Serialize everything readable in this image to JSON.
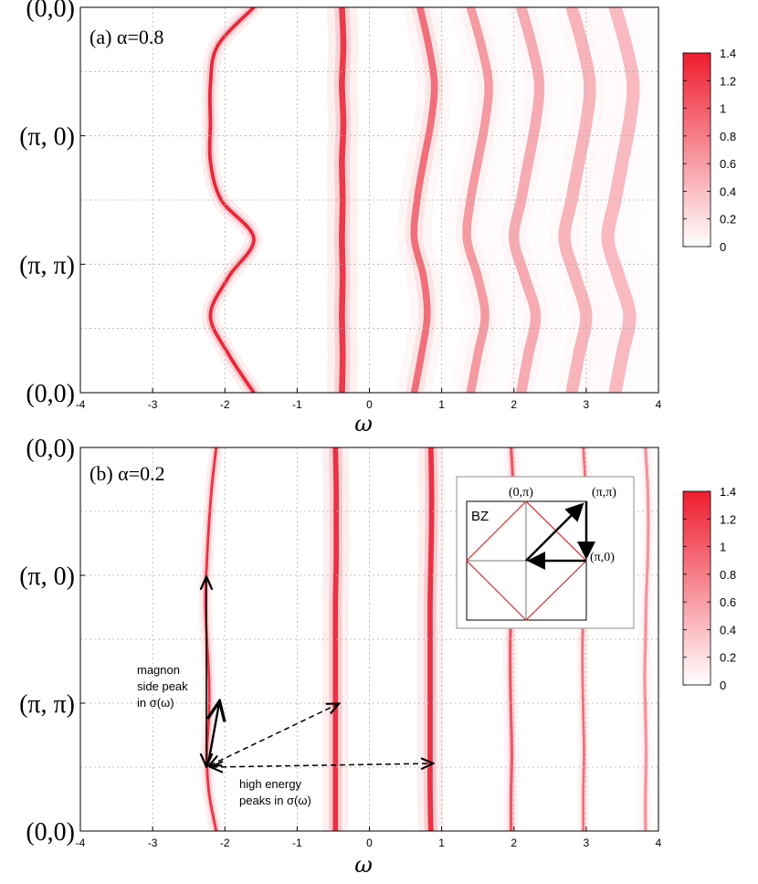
{
  "chart_data": [
    {
      "type": "heatmap",
      "panel_label": "(a) α=0.8",
      "alpha": 0.8,
      "xlabel": "ω",
      "xlim": [
        -4,
        4
      ],
      "x_ticks": [
        "-4",
        "-3",
        "-2",
        "-1",
        "0",
        "1",
        "2",
        "3",
        "4"
      ],
      "y_ticks": [
        "(0,0)",
        "(π, 0)",
        "(π, π)",
        "(0,0)"
      ],
      "colorbar": {
        "range": [
          0,
          1.4
        ],
        "ticks": [
          "1.4",
          "1.2",
          "1",
          "0.8",
          "0.6",
          "0.4",
          "0.2",
          "0"
        ]
      },
      "bands": [
        {
          "omega": [
            -1.6,
            -2.1,
            -2.2,
            -2.2,
            -2.2,
            -2.05,
            -1.6,
            -1.95,
            -2.2,
            -1.95,
            -1.6
          ],
          "width": 0.04,
          "peak": 1.4
        },
        {
          "omega": [
            -0.38,
            -0.36,
            -0.38,
            -0.36,
            -0.38,
            -0.37,
            -0.38,
            -0.37,
            -0.38,
            -0.37,
            -0.38
          ],
          "width": 0.07,
          "peak": 1.2
        },
        {
          "omega": [
            0.7,
            0.82,
            0.9,
            0.85,
            0.75,
            0.66,
            0.62,
            0.75,
            0.8,
            0.72,
            0.62
          ],
          "width": 0.08,
          "peak": 0.7
        },
        {
          "omega": [
            1.4,
            1.55,
            1.65,
            1.6,
            1.5,
            1.4,
            1.35,
            1.5,
            1.6,
            1.5,
            1.4
          ],
          "width": 0.1,
          "peak": 0.35
        },
        {
          "omega": [
            2.1,
            2.25,
            2.35,
            2.3,
            2.2,
            2.1,
            2.0,
            2.15,
            2.3,
            2.2,
            2.1
          ],
          "width": 0.12,
          "peak": 0.22
        },
        {
          "omega": [
            2.8,
            2.95,
            3.05,
            3.0,
            2.9,
            2.8,
            2.7,
            2.85,
            3.0,
            2.9,
            2.8
          ],
          "width": 0.14,
          "peak": 0.15
        },
        {
          "omega": [
            3.4,
            3.55,
            3.65,
            3.6,
            3.5,
            3.4,
            3.3,
            3.45,
            3.6,
            3.5,
            3.4
          ],
          "width": 0.15,
          "peak": 0.1
        }
      ]
    },
    {
      "type": "heatmap",
      "panel_label": "(b) α=0.2",
      "alpha": 0.2,
      "xlabel": "ω",
      "xlim": [
        -4,
        4
      ],
      "x_ticks": [
        "-4",
        "-3",
        "-2",
        "-1",
        "0",
        "1",
        "2",
        "3",
        "4"
      ],
      "y_ticks": [
        "(0,0)",
        "(π, 0)",
        "(π, π)",
        "(0,0)"
      ],
      "colorbar": {
        "range": [
          0,
          1.4
        ],
        "ticks": [
          "1.4",
          "1.2",
          "1",
          "0.8",
          "0.6",
          "0.4",
          "0.2",
          "0"
        ]
      },
      "bands": [
        {
          "omega": [
            -2.12,
            -2.18,
            -2.22,
            -2.25,
            -2.27,
            -2.25,
            -2.22,
            -2.22,
            -2.25,
            -2.22,
            -2.12
          ],
          "width": 0.03,
          "peak": 1.3
        },
        {
          "omega": [
            -0.47,
            -0.46,
            -0.46,
            -0.46,
            -0.47,
            -0.47,
            -0.47,
            -0.47,
            -0.47,
            -0.47,
            -0.47
          ],
          "width": 0.06,
          "peak": 1.3
        },
        {
          "omega": [
            0.85,
            0.86,
            0.86,
            0.85,
            0.84,
            0.84,
            0.84,
            0.84,
            0.84,
            0.84,
            0.85
          ],
          "width": 0.06,
          "peak": 1.3
        },
        {
          "omega": [
            1.96,
            1.99,
            2.0,
            1.99,
            1.97,
            1.95,
            1.95,
            1.96,
            1.97,
            1.96,
            1.96
          ],
          "width": 0.035,
          "peak": 0.9
        },
        {
          "omega": [
            2.96,
            2.99,
            3.0,
            2.99,
            2.97,
            2.95,
            2.95,
            2.96,
            2.97,
            2.96,
            2.96
          ],
          "width": 0.03,
          "peak": 0.7
        },
        {
          "omega": [
            3.82,
            3.85,
            3.86,
            3.85,
            3.83,
            3.82,
            3.81,
            3.82,
            3.83,
            3.82,
            3.82
          ],
          "width": 0.035,
          "peak": 0.4
        }
      ],
      "annotations": {
        "magnon": [
          "magnon",
          "side peak",
          "in σ(ω)"
        ],
        "high_energy": [
          "high energy",
          "peaks in σ(ω)"
        ]
      },
      "inset": {
        "zone_label": "BZ",
        "point_top": "(0,π)",
        "point_corner": "(π,π)",
        "point_right": "(π,0)"
      }
    }
  ],
  "colors": {
    "band": "#e8283a",
    "grid": "#b0b0b0",
    "inset_diamond": "#d04040"
  }
}
